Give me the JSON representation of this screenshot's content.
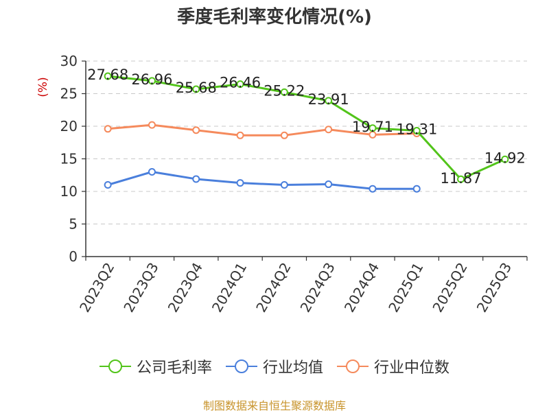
{
  "chart_data": {
    "type": "line",
    "title": "季度毛利率变化情况(%)",
    "ylabel": "(%)",
    "xlabel": "",
    "categories": [
      "2023Q2",
      "2023Q3",
      "2023Q4",
      "2024Q1",
      "2024Q2",
      "2024Q3",
      "2024Q4",
      "2025Q1",
      "2025Q2",
      "2025Q3"
    ],
    "y_ticks": [
      "0",
      "5",
      "10",
      "15",
      "20",
      "25",
      "30"
    ],
    "ylim": [
      0,
      30
    ],
    "grid": true,
    "legend_position": "bottom",
    "series": [
      {
        "name": "公司毛利率",
        "color": "#52c41a",
        "values": [
          27.68,
          26.96,
          25.68,
          26.46,
          25.22,
          23.91,
          19.71,
          19.31,
          11.87,
          14.92
        ],
        "labels": [
          "27.68",
          "26.96",
          "25.68",
          "26.46",
          "25.22",
          "23.91",
          "19.71",
          "19.31",
          "11.87",
          "14.92"
        ]
      },
      {
        "name": "行业均值",
        "color": "#4a7fdc",
        "values": [
          11.0,
          13.0,
          11.9,
          11.3,
          11.0,
          11.1,
          10.4,
          10.4,
          null,
          null
        ]
      },
      {
        "name": "行业中位数",
        "color": "#f58a5c",
        "values": [
          19.6,
          20.2,
          19.4,
          18.6,
          18.6,
          19.5,
          18.7,
          18.9,
          null,
          null
        ]
      }
    ]
  },
  "source_text": "制图数据来自恒生聚源数据库"
}
